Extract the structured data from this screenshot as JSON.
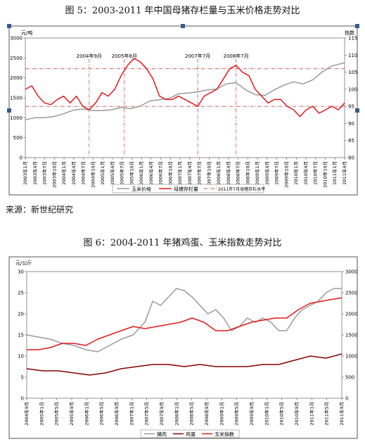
{
  "titles": {
    "chart1": "图 5：2003-2011 年中国母猪存栏量与玉米价格走势对比",
    "chart2": "图 6：2004-2011 年猪鸡蛋、玉米指数走势对比",
    "source": "来源：新世纪研究"
  },
  "colors": {
    "gray": "#9a9a9a",
    "red": "#e41a1c",
    "darkred": "#8b0000",
    "ref": "#c0504d"
  },
  "chart_data": [
    {
      "type": "line",
      "unit_left": "元/吨",
      "unit_right": "指数",
      "y_left": {
        "min": 0,
        "max": 3000,
        "ticks": [
          0,
          500,
          1000,
          1500,
          2000,
          2500,
          3000
        ]
      },
      "y_right": {
        "min": 80,
        "max": 115,
        "ticks": [
          80,
          85,
          90,
          95,
          100,
          105,
          110,
          115
        ]
      },
      "x_ticks": [
        "2003年1月",
        "2003年4月",
        "2003年7月",
        "2003年10月",
        "2004年1月",
        "2004年4月",
        "2004年7月",
        "2004年10月",
        "2005年1月",
        "2005年4月",
        "2005年7月",
        "2005年10月",
        "2006年1月",
        "2006年4月",
        "2006年7月",
        "2006年10月",
        "2007年1月",
        "2007年4月",
        "2007年7月",
        "2007年10月",
        "2008年1月",
        "2008年4月",
        "2008年7月",
        "2008年10月",
        "2009年1月",
        "2009年4月",
        "2009年7月",
        "2009年10月",
        "2010年1月",
        "2010年4月",
        "2010年7月",
        "2010年10月",
        "2011年1月",
        "2011年4月"
      ],
      "reference_lines": [
        {
          "axis": "right",
          "value": 106
        },
        {
          "axis": "right",
          "value": 95
        }
      ],
      "annotations": [
        {
          "label": "2004年9月",
          "x": 20
        },
        {
          "label": "2005年8月",
          "x": 31
        },
        {
          "label": "2007年7月",
          "x": 54
        },
        {
          "label": "2008年7月",
          "x": 66
        }
      ],
      "series": [
        {
          "name": "玉米价格",
          "axis": "left",
          "color": "#9a9a9a",
          "values": [
            [
              0,
              950
            ],
            [
              3,
              1000
            ],
            [
              6,
              1000
            ],
            [
              9,
              1030
            ],
            [
              12,
              1100
            ],
            [
              15,
              1190
            ],
            [
              18,
              1220
            ],
            [
              21,
              1180
            ],
            [
              24,
              1180
            ],
            [
              27,
              1200
            ],
            [
              30,
              1260
            ],
            [
              33,
              1230
            ],
            [
              36,
              1290
            ],
            [
              39,
              1420
            ],
            [
              42,
              1450
            ],
            [
              45,
              1480
            ],
            [
              48,
              1600
            ],
            [
              51,
              1620
            ],
            [
              54,
              1650
            ],
            [
              57,
              1700
            ],
            [
              60,
              1720
            ],
            [
              63,
              1850
            ],
            [
              66,
              1880
            ],
            [
              69,
              1700
            ],
            [
              72,
              1580
            ],
            [
              75,
              1560
            ],
            [
              78,
              1700
            ],
            [
              81,
              1820
            ],
            [
              84,
              1900
            ],
            [
              87,
              1850
            ],
            [
              90,
              1950
            ],
            [
              93,
              2150
            ],
            [
              96,
              2300
            ],
            [
              99,
              2360
            ],
            [
              100,
              2380
            ]
          ]
        },
        {
          "name": "母猪存栏量",
          "axis": "right",
          "color": "#e41a1c",
          "values": [
            [
              0,
              100
            ],
            [
              2,
              101
            ],
            [
              4,
              98
            ],
            [
              6,
              96
            ],
            [
              8,
              95.5
            ],
            [
              10,
              97
            ],
            [
              12,
              98
            ],
            [
              14,
              96
            ],
            [
              16,
              98
            ],
            [
              18,
              95
            ],
            [
              20,
              94
            ],
            [
              22,
              96
            ],
            [
              24,
              99
            ],
            [
              26,
              98
            ],
            [
              28,
              100
            ],
            [
              30,
              104
            ],
            [
              32,
              107
            ],
            [
              34,
              109
            ],
            [
              36,
              108
            ],
            [
              38,
              106
            ],
            [
              40,
              103
            ],
            [
              42,
              98
            ],
            [
              44,
              97
            ],
            [
              46,
              97
            ],
            [
              48,
              98
            ],
            [
              50,
              97
            ],
            [
              52,
              96
            ],
            [
              54,
              95
            ],
            [
              56,
              98
            ],
            [
              58,
              99
            ],
            [
              60,
              100
            ],
            [
              62,
              103
            ],
            [
              64,
              106
            ],
            [
              66,
              107
            ],
            [
              68,
              105
            ],
            [
              70,
              104
            ],
            [
              72,
              100
            ],
            [
              74,
              98
            ],
            [
              76,
              96
            ],
            [
              78,
              97
            ],
            [
              80,
              97
            ],
            [
              82,
              95
            ],
            [
              84,
              94
            ],
            [
              86,
              92
            ],
            [
              88,
              94
            ],
            [
              90,
              95
            ],
            [
              92,
              93
            ],
            [
              94,
              94
            ],
            [
              96,
              95
            ],
            [
              98,
              94
            ],
            [
              100,
              96
            ]
          ]
        }
      ],
      "legend": [
        {
          "label": "玉米价格",
          "style": "gray-solid"
        },
        {
          "label": "母猪存栏量",
          "style": "red-solid"
        },
        {
          "label": "2011年7月母猪存栏水平",
          "style": "red-dashdot"
        }
      ],
      "legend_position": "bottom",
      "grid": false
    },
    {
      "type": "line",
      "unit_left": "元/公斤",
      "y_left": {
        "min": 0,
        "max": 30,
        "ticks": [
          0,
          5,
          10,
          15,
          20,
          25,
          30
        ]
      },
      "y_right": {
        "min": 0,
        "max": 3000,
        "ticks": [
          0,
          500,
          1000,
          1500,
          2000,
          2500,
          3000
        ]
      },
      "x_ticks": [
        "2004年9月",
        "2005年1月",
        "2005年5月",
        "2005年9月",
        "2006年1月",
        "2006年5月",
        "2006年9月",
        "2007年1月",
        "2007年5月",
        "2007年9月",
        "2008年1月",
        "2008年5月",
        "2008年9月",
        "2009年1月",
        "2009年5月",
        "2009年9月",
        "2010年1月",
        "2010年5月",
        "2010年9月",
        "2011年1月",
        "2011年5月",
        "2011年9月"
      ],
      "series": [
        {
          "name": "猪肉",
          "axis": "left",
          "color": "#9a9a9a",
          "values": [
            [
              0,
              15
            ],
            [
              3,
              14.5
            ],
            [
              6,
              14
            ],
            [
              9,
              13
            ],
            [
              12,
              12.5
            ],
            [
              15,
              11.5
            ],
            [
              18,
              11
            ],
            [
              21,
              12.5
            ],
            [
              24,
              14
            ],
            [
              27,
              15
            ],
            [
              30,
              18
            ],
            [
              32,
              23
            ],
            [
              34,
              22
            ],
            [
              36,
              24
            ],
            [
              38,
              26
            ],
            [
              40,
              25.5
            ],
            [
              42,
              24
            ],
            [
              44,
              22
            ],
            [
              46,
              20
            ],
            [
              48,
              21
            ],
            [
              50,
              19
            ],
            [
              52,
              16
            ],
            [
              54,
              17
            ],
            [
              56,
              19
            ],
            [
              58,
              18
            ],
            [
              60,
              19
            ],
            [
              62,
              18
            ],
            [
              64,
              16
            ],
            [
              66,
              16
            ],
            [
              68,
              19
            ],
            [
              70,
              21
            ],
            [
              72,
              22
            ],
            [
              74,
              23
            ],
            [
              76,
              25
            ],
            [
              78,
              26
            ],
            [
              80,
              26
            ]
          ]
        },
        {
          "name": "鸡蛋",
          "axis": "left",
          "color": "#8b0000",
          "values": [
            [
              0,
              7
            ],
            [
              4,
              6.5
            ],
            [
              8,
              6.5
            ],
            [
              12,
              6
            ],
            [
              16,
              5.5
            ],
            [
              20,
              6
            ],
            [
              24,
              7
            ],
            [
              28,
              7.5
            ],
            [
              32,
              8
            ],
            [
              36,
              8
            ],
            [
              40,
              7.5
            ],
            [
              44,
              8
            ],
            [
              48,
              7.5
            ],
            [
              52,
              7.5
            ],
            [
              56,
              7.5
            ],
            [
              60,
              8
            ],
            [
              64,
              8
            ],
            [
              68,
              9
            ],
            [
              72,
              10
            ],
            [
              76,
              9.5
            ],
            [
              80,
              10.5
            ]
          ]
        },
        {
          "name": "玉米指数",
          "axis": "right",
          "color": "#e41a1c",
          "values": [
            [
              0,
              1150
            ],
            [
              3,
              1150
            ],
            [
              6,
              1200
            ],
            [
              9,
              1300
            ],
            [
              12,
              1300
            ],
            [
              15,
              1250
            ],
            [
              18,
              1400
            ],
            [
              21,
              1500
            ],
            [
              24,
              1600
            ],
            [
              27,
              1700
            ],
            [
              30,
              1650
            ],
            [
              33,
              1700
            ],
            [
              36,
              1750
            ],
            [
              39,
              1800
            ],
            [
              42,
              1900
            ],
            [
              45,
              1800
            ],
            [
              48,
              1600
            ],
            [
              51,
              1600
            ],
            [
              54,
              1700
            ],
            [
              57,
              1800
            ],
            [
              60,
              1850
            ],
            [
              63,
              1900
            ],
            [
              66,
              1900
            ],
            [
              69,
              2100
            ],
            [
              72,
              2250
            ],
            [
              75,
              2300
            ],
            [
              78,
              2350
            ],
            [
              80,
              2380
            ]
          ]
        }
      ],
      "legend": [
        {
          "label": "猪肉",
          "style": "gray-solid"
        },
        {
          "label": "鸡蛋",
          "style": "darkred-solid"
        },
        {
          "label": "玉米指数",
          "style": "red-solid"
        }
      ],
      "legend_position": "bottom",
      "grid": false
    }
  ]
}
